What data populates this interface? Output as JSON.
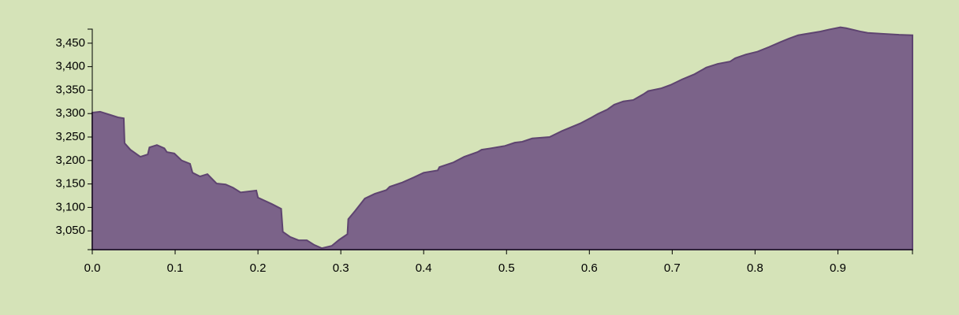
{
  "chart_data": {
    "type": "area",
    "x": [
      0,
      0.0095,
      0.022,
      0.031,
      0.038,
      0.039,
      0.046,
      0.058,
      0.067,
      0.069,
      0.078,
      0.087,
      0.09,
      0.099,
      0.108,
      0.118,
      0.121,
      0.13,
      0.139,
      0.15,
      0.161,
      0.17,
      0.179,
      0.198,
      0.2,
      0.217,
      0.228,
      0.23,
      0.239,
      0.249,
      0.259,
      0.268,
      0.277,
      0.289,
      0.298,
      0.308,
      0.309,
      0.317,
      0.329,
      0.341,
      0.355,
      0.359,
      0.374,
      0.388,
      0.4,
      0.417,
      0.419,
      0.436,
      0.449,
      0.465,
      0.47,
      0.481,
      0.498,
      0.51,
      0.519,
      0.531,
      0.552,
      0.567,
      0.589,
      0.603,
      0.61,
      0.622,
      0.63,
      0.641,
      0.653,
      0.665,
      0.671,
      0.687,
      0.698,
      0.712,
      0.727,
      0.741,
      0.755,
      0.77,
      0.776,
      0.789,
      0.803,
      0.817,
      0.83,
      0.841,
      0.852,
      0.879,
      0.889,
      0.903,
      0.91,
      0.927,
      0.936,
      0.955,
      0.974,
      0.99
    ],
    "values": [
      3302,
      3304,
      3297,
      3292,
      3290,
      3237,
      3223,
      3208,
      3213,
      3228,
      3233,
      3226,
      3218,
      3215,
      3200,
      3193,
      3174,
      3166,
      3171,
      3151,
      3149,
      3142,
      3132,
      3136,
      3121,
      3107,
      3097,
      3048,
      3037,
      3030,
      3030,
      3020,
      3013,
      3018,
      3031,
      3043,
      3075,
      3092,
      3119,
      3129,
      3137,
      3144,
      3153,
      3164,
      3174,
      3179,
      3186,
      3196,
      3208,
      3218,
      3223,
      3226,
      3231,
      3238,
      3240,
      3247,
      3250,
      3263,
      3279,
      3292,
      3299,
      3309,
      3319,
      3326,
      3329,
      3341,
      3348,
      3354,
      3361,
      3373,
      3384,
      3398,
      3406,
      3411,
      3418,
      3426,
      3432,
      3442,
      3452,
      3460,
      3467,
      3475,
      3479,
      3484,
      3482,
      3475,
      3472,
      3470,
      3468,
      3467
    ],
    "color": "#7b6389",
    "xlim": [
      0,
      0.99
    ],
    "ylim": [
      3010,
      3485
    ],
    "xticks": [
      {
        "value": 0,
        "label": "0.0"
      },
      0.1,
      0.2,
      0.3,
      0.4,
      0.5,
      0.6,
      0.7,
      0.8,
      0.9
    ],
    "yticks": [
      {
        "value": 3050,
        "label": "3,050"
      },
      {
        "value": 3100,
        "label": "3,100"
      },
      {
        "value": 3150,
        "label": "3,150"
      },
      {
        "value": 3200,
        "label": "3,200"
      },
      {
        "value": 3250,
        "label": "3,250"
      },
      {
        "value": 3300,
        "label": "3,300"
      },
      {
        "value": 3350,
        "label": "3,350"
      },
      {
        "value": 3400,
        "label": "3,400"
      },
      {
        "value": 3450,
        "label": "3,450"
      }
    ]
  }
}
